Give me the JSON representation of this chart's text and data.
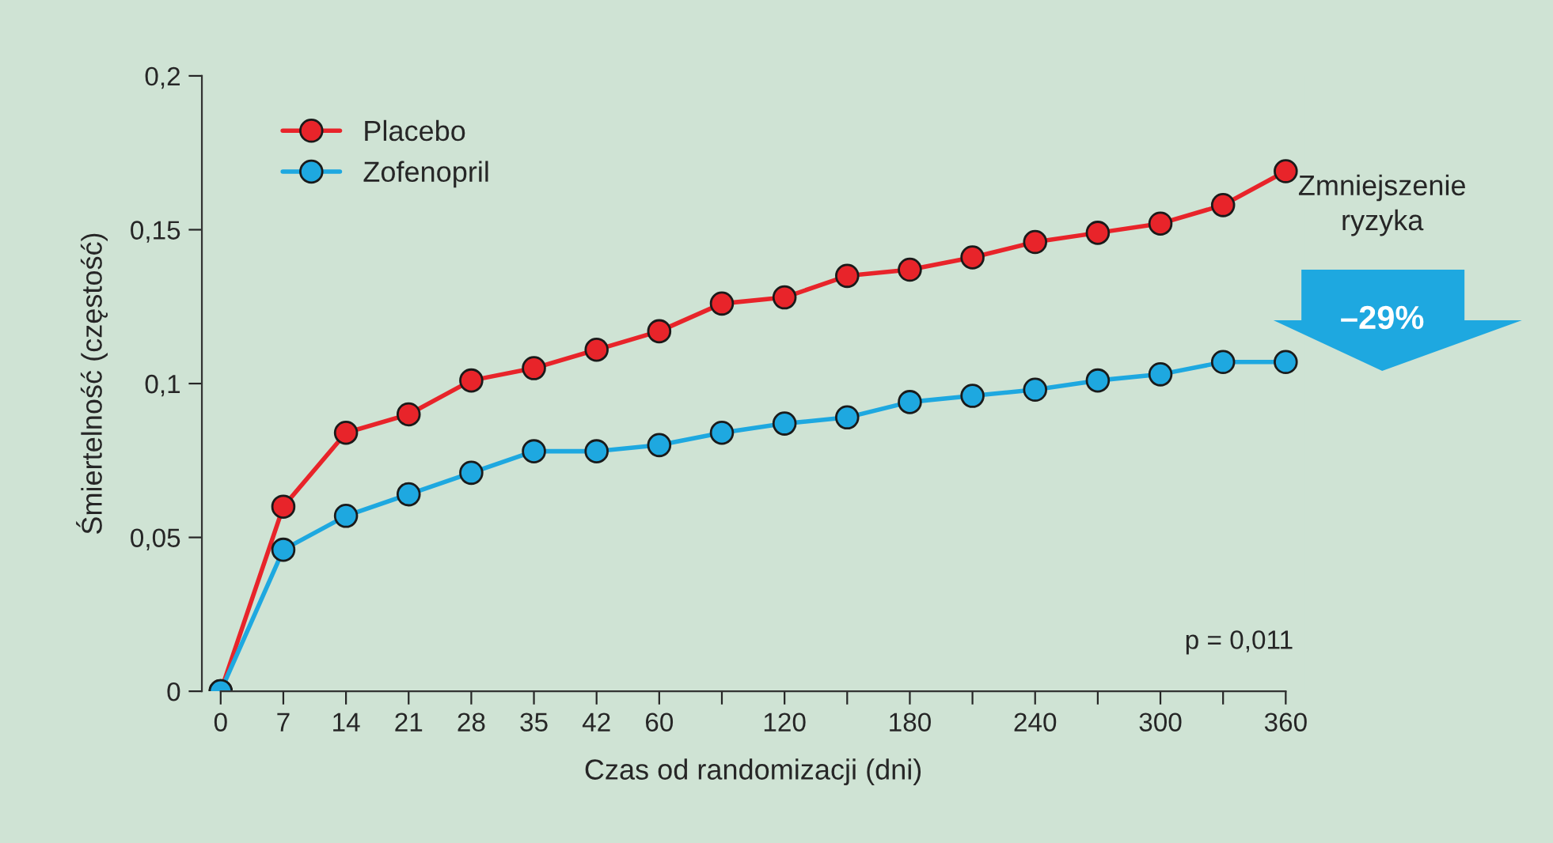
{
  "chart_data": {
    "type": "line",
    "xlabel": "Czas od randomizacji (dni)",
    "ylabel": "Śmiertelność (częstość)",
    "categories": [
      "0",
      "7",
      "14",
      "21",
      "28",
      "35",
      "42",
      "60",
      null,
      "120",
      null,
      "180",
      null,
      "240",
      null,
      "300",
      null,
      "360"
    ],
    "series": [
      {
        "name": "Placebo",
        "color": "#e8242a",
        "values": [
          0,
          0.06,
          0.084,
          0.09,
          0.101,
          0.105,
          0.111,
          0.117,
          0.126,
          0.128,
          0.135,
          0.137,
          0.141,
          0.146,
          0.149,
          0.152,
          0.158,
          0.169
        ]
      },
      {
        "name": "Zofenopril",
        "color": "#1ea8e0",
        "values": [
          0,
          0.046,
          0.057,
          0.064,
          0.071,
          0.078,
          0.078,
          0.08,
          0.084,
          0.087,
          0.089,
          0.094,
          0.096,
          0.098,
          0.101,
          0.103,
          0.107,
          0.107
        ]
      }
    ],
    "ylim": [
      0,
      0.2
    ],
    "yticks": [
      0,
      {
        "value": 0.05,
        "label": "0,05"
      },
      {
        "value": 0.1,
        "label": "0,1"
      },
      {
        "value": 0.15,
        "label": "0,15"
      },
      {
        "value": 0.2,
        "label": "0,2"
      }
    ],
    "marker": "circle",
    "line_style": "solid",
    "legend": "top left",
    "grid": false,
    "annotations": [
      "Zmniejszenie\nryzyka",
      "–29%",
      "p = 0,011"
    ]
  }
}
